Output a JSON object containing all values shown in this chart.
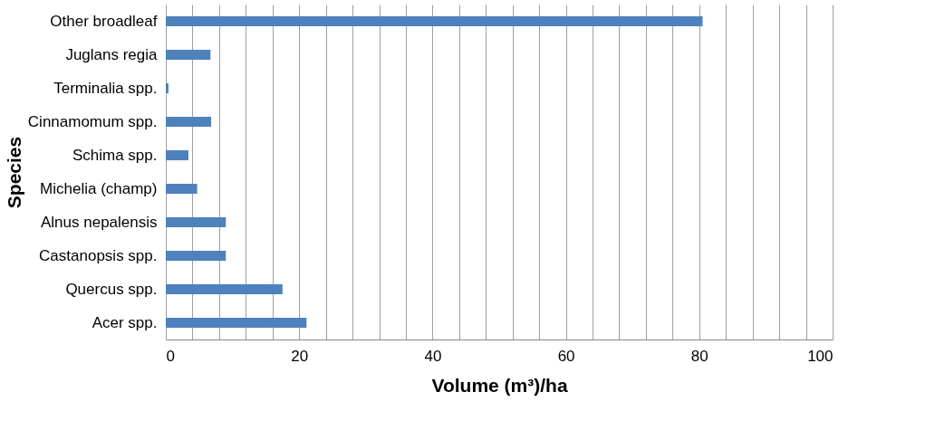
{
  "chart_data": {
    "type": "bar",
    "orientation": "horizontal",
    "xlabel": "Volume (m³)/ha",
    "ylabel": "Species",
    "categories": [
      "Other broadleaf",
      "Juglans regia",
      "Terminalia spp.",
      "Cinnamomum spp.",
      "Schima spp.",
      "Michelia (champ)",
      "Alnus nepalensis",
      "Castanopsis spp.",
      "Quercus spp.",
      "Acer spp."
    ],
    "values": [
      80.5,
      6.7,
      0.4,
      6.8,
      3.4,
      4.7,
      9.0,
      9.0,
      17.5,
      21.1
    ],
    "color": "#4f81bd",
    "xlim": [
      0,
      100
    ],
    "xticks": [
      0,
      {
        "value": 4,
        "label": null
      },
      {
        "value": 8,
        "label": null
      },
      {
        "value": 12,
        "label": null
      },
      {
        "value": 16,
        "label": null
      },
      20,
      {
        "value": 24,
        "label": null
      },
      {
        "value": 28,
        "label": null
      },
      {
        "value": 32,
        "label": null
      },
      {
        "value": 36,
        "label": null
      },
      40,
      {
        "value": 44,
        "label": null
      },
      {
        "value": 48,
        "label": null
      },
      {
        "value": 52,
        "label": null
      },
      {
        "value": 56,
        "label": null
      },
      60,
      {
        "value": 64,
        "label": null
      },
      {
        "value": 68,
        "label": null
      },
      {
        "value": 72,
        "label": null
      },
      {
        "value": 76,
        "label": null
      },
      80,
      {
        "value": 84,
        "label": null
      },
      {
        "value": 88,
        "label": null
      },
      {
        "value": 92,
        "label": null
      },
      {
        "value": 96,
        "label": null
      },
      100
    ],
    "grid": "x"
  }
}
